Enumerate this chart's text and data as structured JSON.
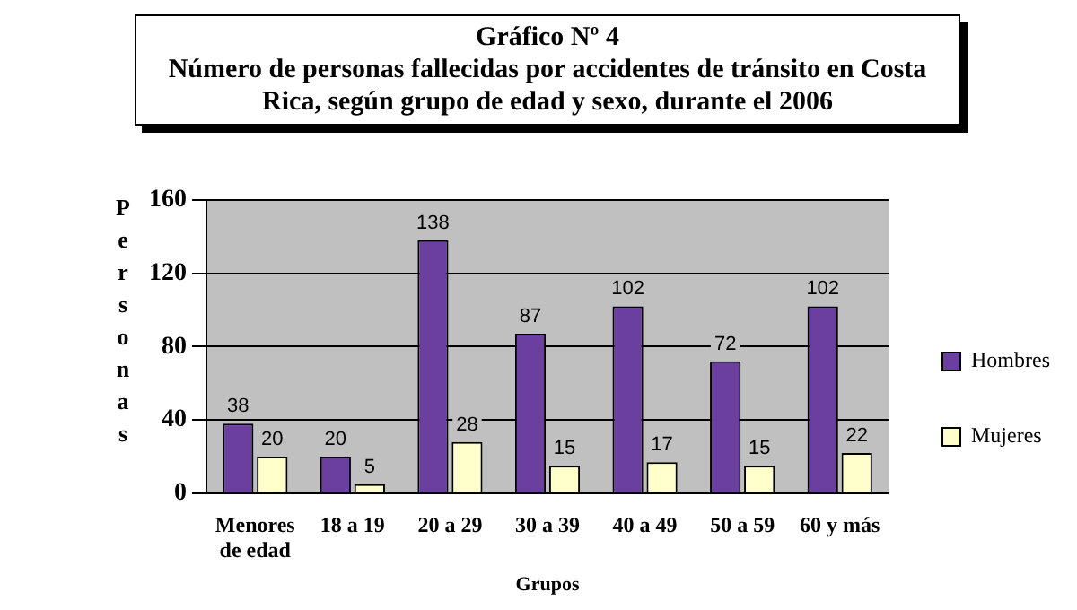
{
  "chart_data": {
    "type": "bar",
    "title": "Gráfico Nº 4",
    "subtitle": "Número de personas fallecidas por accidentes de tránsito en Costa Rica, según grupo de edad y sexo, durante el 2006",
    "xlabel": "Grupos",
    "ylabel": "Personas",
    "categories": [
      "Menores de edad",
      "18 a 19",
      "20 a 29",
      "30 a 39",
      "40 a 49",
      "50 a 59",
      "60 y más"
    ],
    "series": [
      {
        "name": "Hombres",
        "color": "#6a3fa0",
        "values": [
          38,
          20,
          138,
          87,
          102,
          72,
          102
        ]
      },
      {
        "name": "Mujeres",
        "color": "#ffffcc",
        "values": [
          20,
          5,
          28,
          15,
          17,
          15,
          22
        ]
      }
    ],
    "ylim": [
      0,
      160
    ],
    "yticks": [
      0,
      40,
      80,
      120,
      160
    ],
    "grid": "y",
    "legend": "right",
    "data_labels": true
  }
}
